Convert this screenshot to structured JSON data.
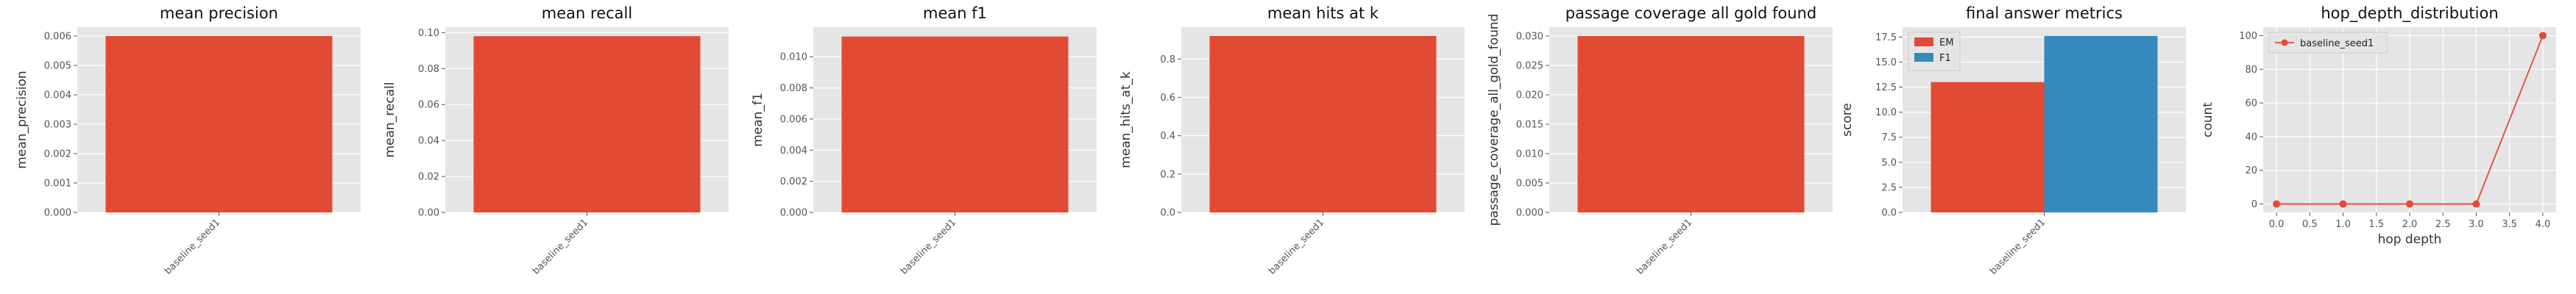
{
  "chart_data": [
    {
      "type": "bar",
      "title": "mean precision",
      "xlabel": "",
      "ylabel": "mean_precision",
      "categories": [
        "baseline_seed1"
      ],
      "values": [
        0.006
      ],
      "ylim": [
        0,
        0.0063
      ],
      "yticks": [
        0,
        0.001,
        0.002,
        0.003,
        0.004,
        0.005,
        0.006
      ],
      "ytick_labels": [
        "0.000",
        "0.001",
        "0.002",
        "0.003",
        "0.004",
        "0.005",
        "0.006"
      ],
      "grid": true,
      "colors": [
        "#e24a33"
      ]
    },
    {
      "type": "bar",
      "title": "mean recall",
      "xlabel": "",
      "ylabel": "mean_recall",
      "categories": [
        "baseline_seed1"
      ],
      "values": [
        0.098
      ],
      "ylim": [
        0,
        0.103
      ],
      "yticks": [
        0,
        0.02,
        0.04,
        0.06,
        0.08,
        0.1
      ],
      "ytick_labels": [
        "0.00",
        "0.02",
        "0.04",
        "0.06",
        "0.08",
        "0.10"
      ],
      "grid": true,
      "colors": [
        "#e24a33"
      ]
    },
    {
      "type": "bar",
      "title": "mean f1",
      "xlabel": "",
      "ylabel": "mean_f1",
      "categories": [
        "baseline_seed1"
      ],
      "values": [
        0.0113
      ],
      "ylim": [
        0,
        0.0119
      ],
      "yticks": [
        0,
        0.002,
        0.004,
        0.006,
        0.008,
        0.01
      ],
      "ytick_labels": [
        "0.000",
        "0.002",
        "0.004",
        "0.006",
        "0.008",
        "0.010"
      ],
      "grid": true,
      "colors": [
        "#e24a33"
      ]
    },
    {
      "type": "bar",
      "title": "mean hits at k",
      "xlabel": "",
      "ylabel": "mean_hits_at_k",
      "categories": [
        "baseline_seed1"
      ],
      "values": [
        0.92
      ],
      "ylim": [
        0,
        0.966
      ],
      "yticks": [
        0,
        0.2,
        0.4,
        0.6,
        0.8
      ],
      "ytick_labels": [
        "0.0",
        "0.2",
        "0.4",
        "0.6",
        "0.8"
      ],
      "grid": true,
      "colors": [
        "#e24a33"
      ]
    },
    {
      "type": "bar",
      "title": "passage coverage all gold found",
      "xlabel": "",
      "ylabel": "passage_coverage_all_gold_found",
      "categories": [
        "baseline_seed1"
      ],
      "values": [
        0.03
      ],
      "ylim": [
        0,
        0.0315
      ],
      "yticks": [
        0,
        0.005,
        0.01,
        0.015,
        0.02,
        0.025,
        0.03
      ],
      "ytick_labels": [
        "0.000",
        "0.005",
        "0.010",
        "0.015",
        "0.020",
        "0.025",
        "0.030"
      ],
      "grid": true,
      "colors": [
        "#e24a33"
      ]
    },
    {
      "type": "bar",
      "title": "final answer metrics",
      "xlabel": "",
      "ylabel": "score",
      "categories": [
        "baseline_seed1"
      ],
      "series": [
        {
          "name": "EM",
          "values": [
            13.0
          ],
          "color": "#e24a33"
        },
        {
          "name": "F1",
          "values": [
            17.6
          ],
          "color": "#348abd"
        }
      ],
      "ylim": [
        0,
        18.48
      ],
      "yticks": [
        0,
        2.5,
        5,
        7.5,
        10,
        12.5,
        15,
        17.5
      ],
      "ytick_labels": [
        "0.0",
        "2.5",
        "5.0",
        "7.5",
        "10.0",
        "12.5",
        "15.0",
        "17.5"
      ],
      "grid": true,
      "legend": "top-left"
    },
    {
      "type": "line",
      "title": "hop_depth_distribution",
      "xlabel": "hop depth",
      "ylabel": "count",
      "series": [
        {
          "name": "baseline_seed1",
          "x": [
            0,
            1,
            2,
            3,
            4
          ],
          "y": [
            0,
            0,
            0,
            0,
            100
          ],
          "color": "#e24a33"
        }
      ],
      "xlim": [
        -0.2,
        4.2
      ],
      "ylim": [
        -5,
        105
      ],
      "xticks": [
        0,
        0.5,
        1,
        1.5,
        2,
        2.5,
        3,
        3.5,
        4
      ],
      "xtick_labels": [
        "0.0",
        "0.5",
        "1.0",
        "1.5",
        "2.0",
        "2.5",
        "3.0",
        "3.5",
        "4.0"
      ],
      "yticks": [
        0,
        20,
        40,
        60,
        80,
        100
      ],
      "ytick_labels": [
        "0",
        "20",
        "40",
        "60",
        "80",
        "100"
      ],
      "grid": true,
      "legend": "top-left"
    }
  ]
}
